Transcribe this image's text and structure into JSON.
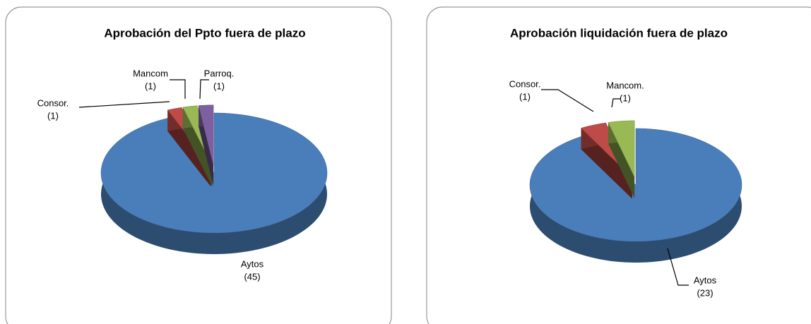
{
  "chart_data": [
    {
      "type": "pie3d",
      "title": "Aprobación del Ppto fuera de plazo",
      "categories": [
        "Aytos",
        "Consor.",
        "Mancom",
        "Parroq."
      ],
      "values": [
        45,
        1,
        1,
        1
      ],
      "value_labels": [
        "(45)",
        "(1)",
        "(1)",
        "(1)"
      ],
      "colors": [
        "#4a7ebb",
        "#be4b48",
        "#98b954",
        "#7d60a0"
      ]
    },
    {
      "type": "pie3d",
      "title": "Aprobación liquidación fuera de plazo",
      "categories": [
        "Aytos",
        "Consor.",
        "Mancom."
      ],
      "values": [
        23,
        1,
        1
      ],
      "value_labels": [
        "(23)",
        "(1)",
        "(1)"
      ],
      "colors": [
        "#4a7ebb",
        "#be4b48",
        "#98b954"
      ]
    }
  ]
}
